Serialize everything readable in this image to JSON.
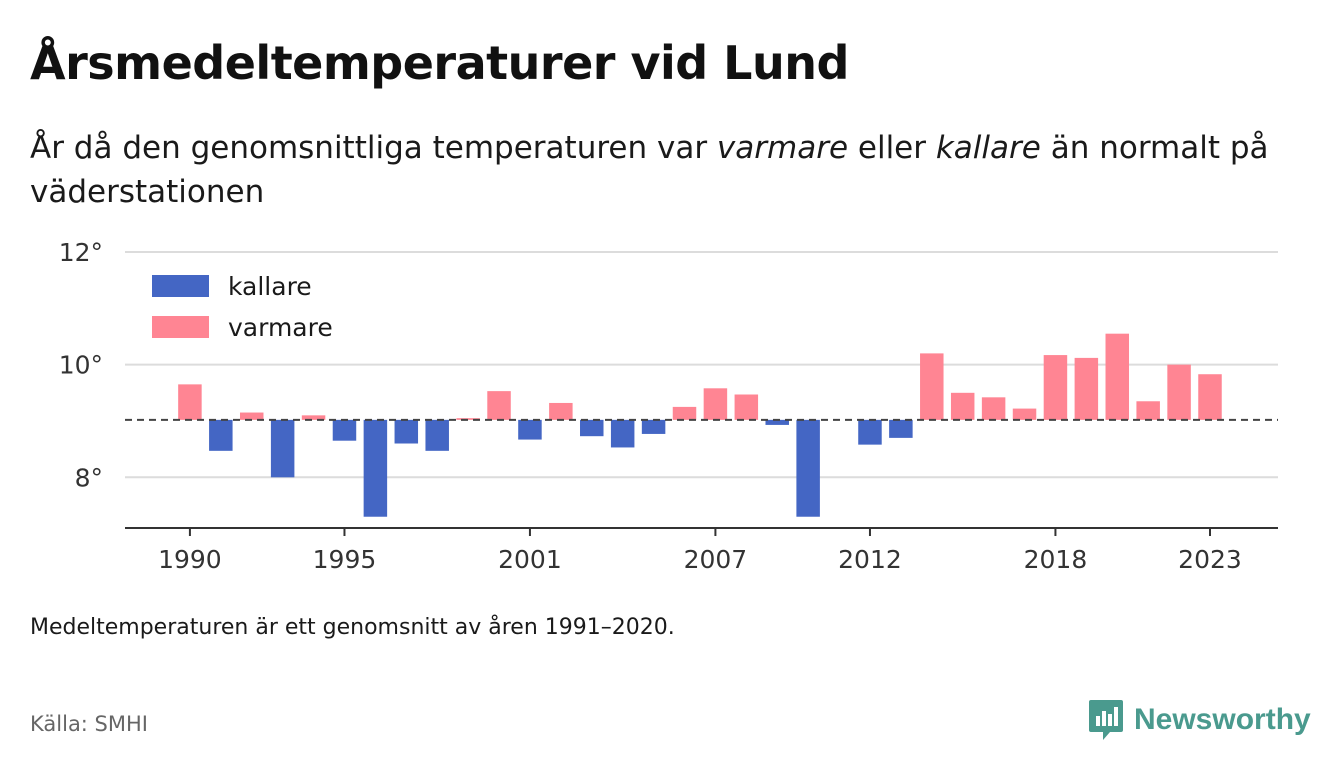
{
  "title": "Årsmedeltemperaturer vid Lund",
  "subtitle": {
    "part1": "År då den genomsnittliga temperaturen var ",
    "warm_word": "varmare",
    "part2": " eller ",
    "cold_word": "kallare",
    "part3": " än normalt på väderstationen"
  },
  "note": "Medeltemperaturen är ett genomsnitt av åren 1991–2020.",
  "source": "Källa: SMHI",
  "brand": {
    "name": "Newsworthy",
    "icon": "newsworthy-logo-icon",
    "color": "#4a9a8e"
  },
  "chart_data": {
    "type": "bar",
    "baseline": 9.02,
    "ylim": [
      7.1,
      12
    ],
    "yticks": [
      {
        "value": 8,
        "label": "8°"
      },
      {
        "value": 10,
        "label": "10°"
      },
      {
        "value": 12,
        "label": "12°"
      }
    ],
    "xticks": [
      1990,
      1995,
      2001,
      2007,
      2012,
      2018,
      2023
    ],
    "xlim": [
      1987.9,
      2025.2
    ],
    "grid": true,
    "legend": {
      "placement": "top-left",
      "items": [
        {
          "key": "cold",
          "label": "kallare",
          "color": "#4466c4"
        },
        {
          "key": "warm",
          "label": "varmare",
          "color": "#ff8593"
        }
      ]
    },
    "x": [
      1990,
      1991,
      1992,
      1993,
      1994,
      1995,
      1996,
      1997,
      1998,
      1999,
      2000,
      2001,
      2002,
      2003,
      2004,
      2005,
      2006,
      2007,
      2008,
      2009,
      2010,
      2011,
      2012,
      2013,
      2014,
      2015,
      2016,
      2017,
      2018,
      2019,
      2020,
      2021,
      2022,
      2023
    ],
    "values": [
      9.65,
      8.47,
      9.15,
      8.0,
      9.1,
      8.65,
      7.3,
      8.6,
      8.47,
      9.05,
      9.53,
      8.67,
      9.32,
      8.73,
      8.53,
      8.77,
      9.25,
      9.58,
      9.47,
      8.93,
      7.3,
      9.02,
      8.58,
      8.7,
      10.2,
      9.5,
      9.42,
      9.22,
      10.17,
      10.12,
      10.55,
      9.35,
      10.0,
      9.83
    ]
  }
}
